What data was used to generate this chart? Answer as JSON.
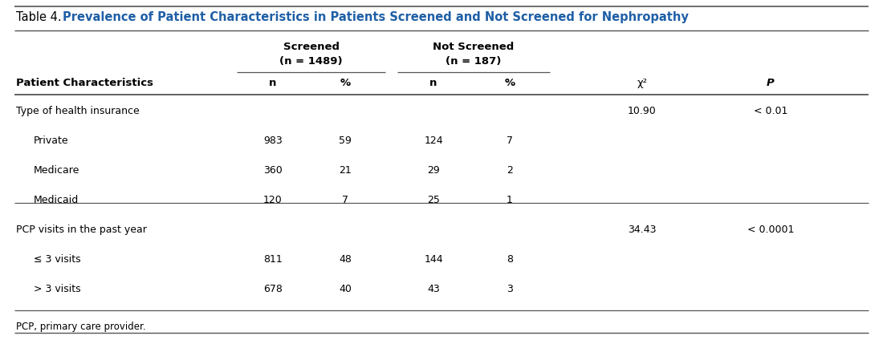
{
  "title_prefix": "Table 4. ",
  "title_bold": "Prevalence of Patient Characteristics in Patients Screened and Not Screened for Nephropathy",
  "title_prefix_color": "#000000",
  "title_bold_color": "#1f5fa6",
  "rows": [
    {
      "label": "Type of health insurance",
      "indent": false,
      "screened_n": "",
      "screened_pct": "",
      "notscreened_n": "",
      "notscreened_pct": "",
      "chi2": "10.90",
      "p": "< 0.01",
      "divider_above": true
    },
    {
      "label": "Private",
      "indent": true,
      "screened_n": "983",
      "screened_pct": "59",
      "notscreened_n": "124",
      "notscreened_pct": "7",
      "chi2": "",
      "p": "",
      "divider_above": false
    },
    {
      "label": "Medicare",
      "indent": true,
      "screened_n": "360",
      "screened_pct": "21",
      "notscreened_n": "29",
      "notscreened_pct": "2",
      "chi2": "",
      "p": "",
      "divider_above": false
    },
    {
      "label": "Medicaid",
      "indent": true,
      "screened_n": "120",
      "screened_pct": "7",
      "notscreened_n": "25",
      "notscreened_pct": "1",
      "chi2": "",
      "p": "",
      "divider_above": false
    },
    {
      "label": "PCP visits in the past year",
      "indent": false,
      "screened_n": "",
      "screened_pct": "",
      "notscreened_n": "",
      "notscreened_pct": "",
      "chi2": "34.43",
      "p": "< 0.0001",
      "divider_above": true
    },
    {
      "label": "≤ 3 visits",
      "indent": true,
      "screened_n": "811",
      "screened_pct": "48",
      "notscreened_n": "144",
      "notscreened_pct": "8",
      "chi2": "",
      "p": "",
      "divider_above": false
    },
    {
      "label": "> 3 visits",
      "indent": true,
      "screened_n": "678",
      "screened_pct": "40",
      "notscreened_n": "43",
      "notscreened_pct": "3",
      "chi2": "",
      "p": "",
      "divider_above": false
    }
  ],
  "footnote": "PCP, primary care provider.",
  "bg_color": "#ffffff",
  "line_color": "#555555",
  "text_color": "#000000",
  "header_color": "#1f5fa6",
  "figwidth": 11.0,
  "figheight": 4.24,
  "dpi": 100
}
